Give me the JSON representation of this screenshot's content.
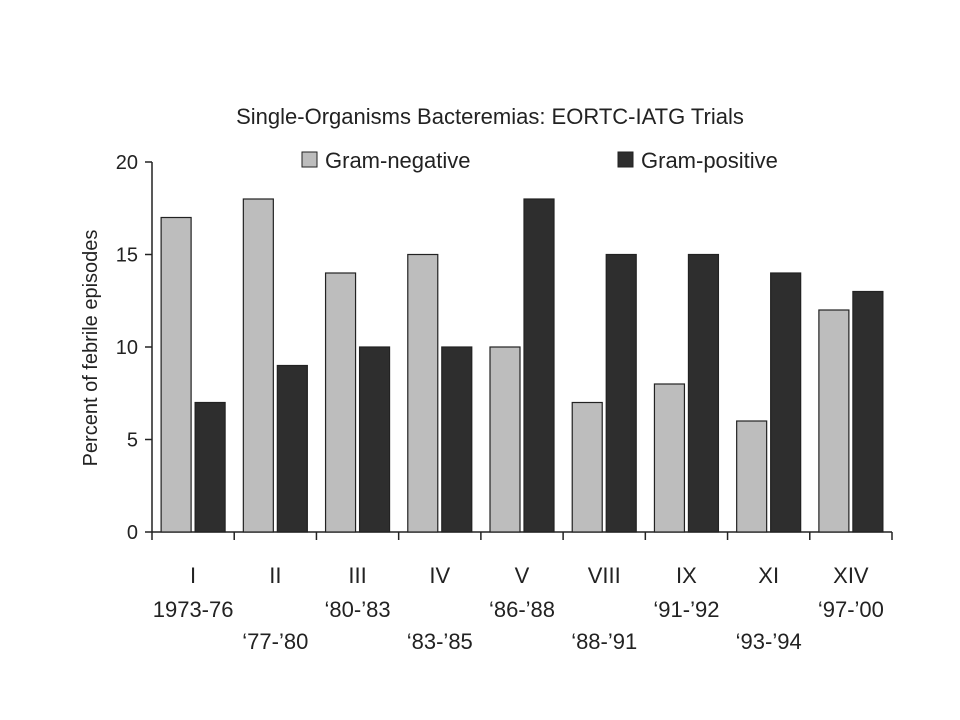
{
  "chart_data": {
    "type": "bar",
    "title": "Single-Organisms Bacteremias: EORTC-IATG Trials",
    "ylabel": "Percent of  febrile episodes",
    "xlabel": "",
    "ylim": [
      0,
      20
    ],
    "yticks": [
      0,
      5,
      10,
      15,
      20
    ],
    "legend_placement": "top",
    "grid": false,
    "categories": [
      {
        "trial": "I",
        "years": "1973-76"
      },
      {
        "trial": "II",
        "years": "‘77-’80"
      },
      {
        "trial": "III",
        "years": "‘80-’83"
      },
      {
        "trial": "IV",
        "years": "‘83-’85"
      },
      {
        "trial": "V",
        "years": "‘86-’88"
      },
      {
        "trial": "VIII",
        "years": "‘88-’91"
      },
      {
        "trial": "IX",
        "years": "‘91-’92"
      },
      {
        "trial": "XI",
        "years": "‘93-’94"
      },
      {
        "trial": "XIV",
        "years": "‘97-’00"
      }
    ],
    "series": [
      {
        "name": "Gram-negative",
        "color": "#bdbdbd",
        "values": [
          17,
          18,
          14,
          15,
          10,
          7,
          8,
          6,
          12
        ]
      },
      {
        "name": "Gram-positive",
        "color": "#2e2e2e",
        "values": [
          7,
          9,
          10,
          10,
          18,
          15,
          15,
          14,
          13
        ]
      }
    ]
  }
}
